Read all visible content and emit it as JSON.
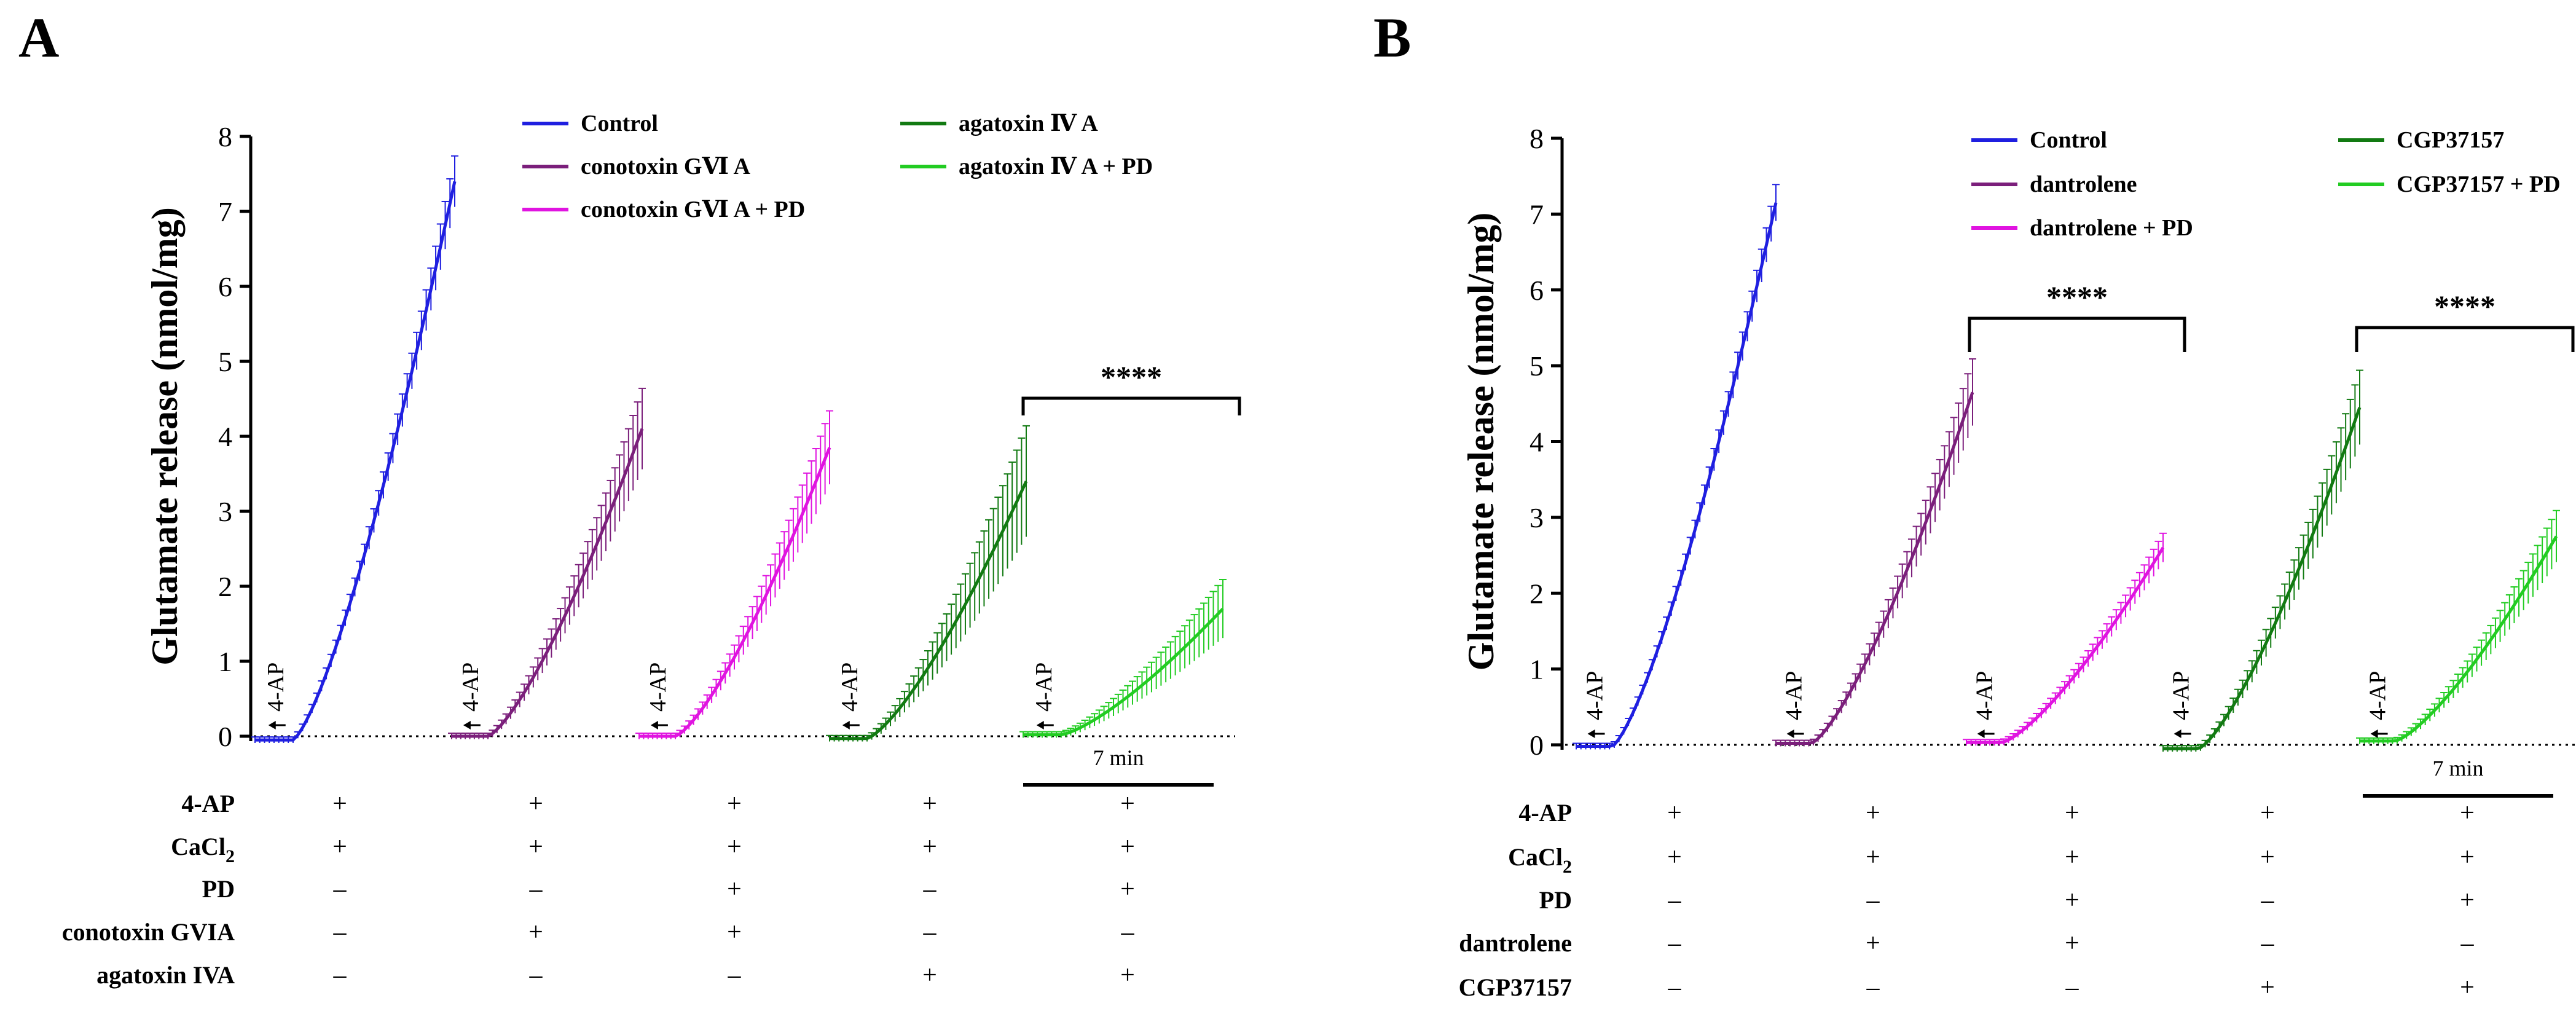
{
  "figure": {
    "panels": [
      {
        "letter": "A",
        "ylabel": "Glutamate release (nmol/mg)",
        "legend": [
          {
            "label": "Control",
            "color": "#1f1fe0"
          },
          {
            "label": "conotoxin GⅥ A",
            "color": "#7b1f7b"
          },
          {
            "label": "conotoxin GⅥ A + PD",
            "color": "#e014e0"
          },
          {
            "label": "agatoxin Ⅳ A",
            "color": "#127a12"
          },
          {
            "label": "agatoxin Ⅳ A + PD",
            "color": "#22cc22"
          }
        ],
        "stim_label": "4-AP",
        "stars": "****",
        "scale_label": "7 min",
        "conditions": [
          {
            "label": "4-AP",
            "values": [
              "+",
              "+",
              "+",
              "+",
              "+"
            ]
          },
          {
            "label": "CaCl",
            "sub": "2",
            "values": [
              "+",
              "+",
              "+",
              "+",
              "+"
            ]
          },
          {
            "label": "PD",
            "values": [
              "–",
              "–",
              "+",
              "–",
              "+"
            ]
          },
          {
            "label": "conotoxin GVIA",
            "values": [
              "–",
              "+",
              "+",
              "–",
              "–"
            ]
          },
          {
            "label": "agatoxin IVA",
            "values": [
              "–",
              "–",
              "–",
              "+",
              "+"
            ]
          }
        ]
      },
      {
        "letter": "B",
        "ylabel": "Glutamate release (nmol/mg)",
        "legend": [
          {
            "label": "Control",
            "color": "#1f1fe0"
          },
          {
            "label": "dantrolene",
            "color": "#7b1f7b"
          },
          {
            "label": "dantrolene + PD",
            "color": "#e014e0"
          },
          {
            "label": "CGP37157",
            "color": "#127a12"
          },
          {
            "label": "CGP37157 + PD",
            "color": "#22cc22"
          }
        ],
        "stim_label": "4-AP",
        "stars": "****",
        "scale_label": "7 min",
        "conditions": [
          {
            "label": "4-AP",
            "values": [
              "+",
              "+",
              "+",
              "+",
              "+"
            ]
          },
          {
            "label": "CaCl",
            "sub": "2",
            "values": [
              "+",
              "+",
              "+",
              "+",
              "+"
            ]
          },
          {
            "label": "PD",
            "values": [
              "–",
              "–",
              "+",
              "–",
              "+"
            ]
          },
          {
            "label": "dantrolene",
            "values": [
              "–",
              "+",
              "+",
              "–",
              "–"
            ]
          },
          {
            "label": "CGP37157",
            "values": [
              "–",
              "–",
              "–",
              "+",
              "+"
            ]
          }
        ]
      }
    ]
  },
  "chart_data": [
    {
      "type": "line",
      "title": "",
      "xlabel": "",
      "ylabel": "Glutamate release (nmol/mg)",
      "ylim": [
        0,
        8
      ],
      "yticks": [
        0,
        1,
        2,
        3,
        4,
        5,
        6,
        7,
        8
      ],
      "scale_bar_minutes": 7,
      "series": [
        {
          "name": "Control",
          "color": "#1f1fe0",
          "start": -0.05,
          "final": 7.4,
          "final_error": 0.3
        },
        {
          "name": "conotoxin GⅥ A",
          "color": "#7b1f7b",
          "start": 0.0,
          "final": 4.1,
          "final_error": 0.5
        },
        {
          "name": "conotoxin GⅥ A + PD",
          "color": "#e014e0",
          "start": 0.0,
          "final": 3.85,
          "final_error": 0.45
        },
        {
          "name": "agatoxin Ⅳ A",
          "color": "#127a12",
          "start": -0.03,
          "final": 3.4,
          "final_error": 0.7
        },
        {
          "name": "agatoxin Ⅳ A + PD",
          "color": "#22cc22",
          "start": 0.02,
          "final": 1.7,
          "final_error": 0.35
        }
      ],
      "comparisons": [
        {
          "between": [
            "agatoxin Ⅳ A",
            "agatoxin Ⅳ A + PD"
          ],
          "y": 4.5,
          "label": "****"
        }
      ]
    },
    {
      "type": "line",
      "title": "",
      "xlabel": "",
      "ylabel": "Glutamate release (nmol/mg)",
      "ylim": [
        0,
        8
      ],
      "yticks": [
        0,
        1,
        2,
        3,
        4,
        5,
        6,
        7,
        8
      ],
      "scale_bar_minutes": 7,
      "series": [
        {
          "name": "Control",
          "color": "#1f1fe0",
          "start": -0.02,
          "final": 7.15,
          "final_error": 0.2
        },
        {
          "name": "dantrolene",
          "color": "#7b1f7b",
          "start": 0.02,
          "final": 4.65,
          "final_error": 0.4
        },
        {
          "name": "dantrolene + PD",
          "color": "#e014e0",
          "start": 0.03,
          "final": 2.6,
          "final_error": 0.15
        },
        {
          "name": "CGP37157",
          "color": "#127a12",
          "start": -0.05,
          "final": 4.45,
          "final_error": 0.45
        },
        {
          "name": "CGP37157 + PD",
          "color": "#22cc22",
          "start": 0.05,
          "final": 2.75,
          "final_error": 0.3
        }
      ],
      "comparisons": [
        {
          "between": [
            "dantrolene",
            "dantrolene + PD"
          ],
          "y": 5.6,
          "label": "****"
        },
        {
          "between": [
            "CGP37157",
            "CGP37157 + PD"
          ],
          "y": 5.5,
          "label": "****"
        }
      ]
    }
  ]
}
